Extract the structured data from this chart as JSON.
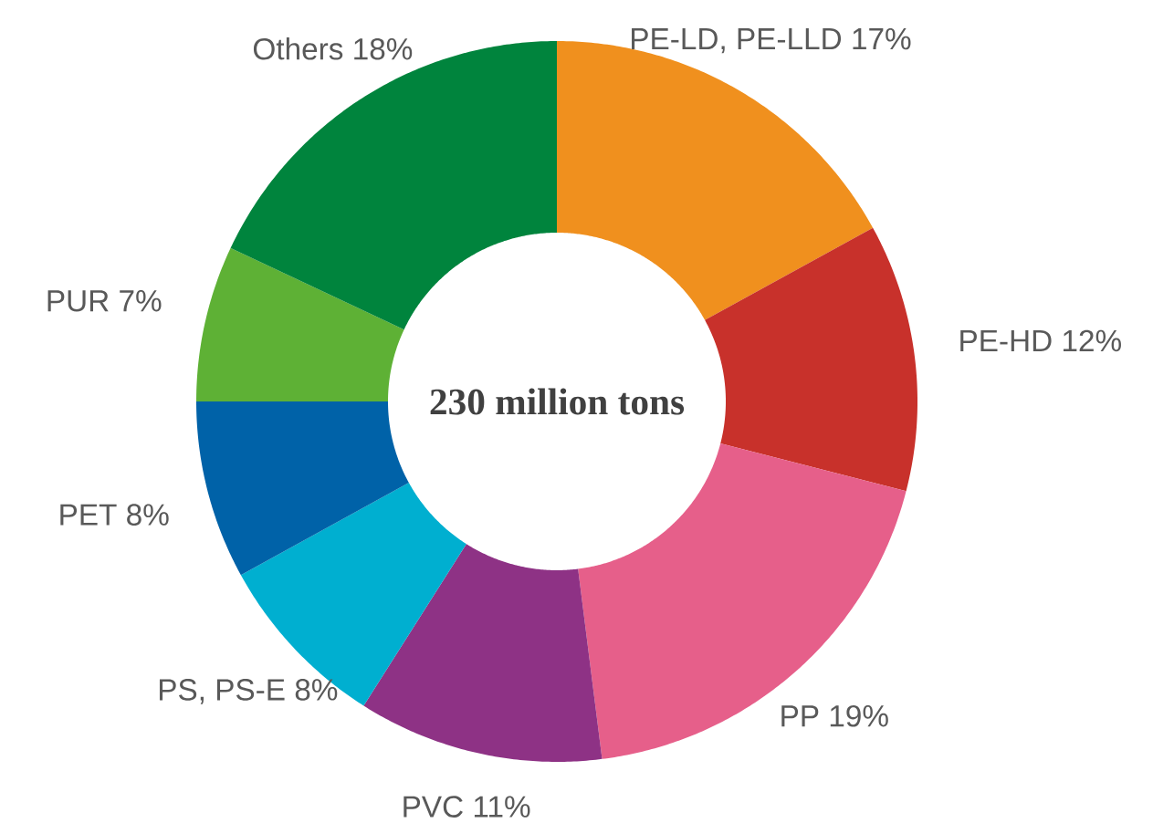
{
  "chart_data": {
    "type": "donut",
    "categories": [
      "PE-LD, PE-LLD",
      "PE-HD",
      "PP",
      "PVC",
      "PS, PS-E",
      "PET",
      "PUR",
      "Others"
    ],
    "values": [
      17,
      12,
      19,
      11,
      8,
      8,
      7,
      18
    ],
    "value_labels": [
      "17%",
      "12%",
      "19%",
      "11%",
      "8%",
      "8%",
      "7%",
      "18%"
    ],
    "colors": [
      "#f0901e",
      "#c8312b",
      "#e65f8a",
      "#8e3285",
      "#00afd0",
      "#0062a8",
      "#5eb135",
      "#00843d"
    ],
    "annotations": [
      "230 million tons"
    ]
  }
}
